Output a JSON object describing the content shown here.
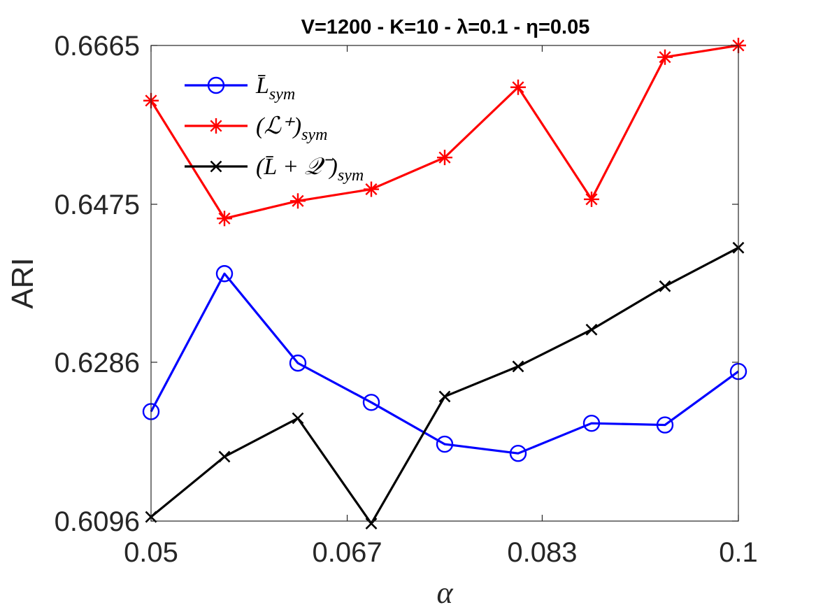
{
  "chart_data": {
    "type": "line",
    "title": "V=1200 - K=10 - λ=0.1 - η=0.05",
    "xlabel": "α",
    "ylabel": "ARI",
    "xlim": [
      0.05,
      0.1
    ],
    "ylim": [
      0.6096,
      0.6665
    ],
    "x": [
      0.05,
      0.05625,
      0.0625,
      0.06875,
      0.075,
      0.08125,
      0.0875,
      0.09375,
      0.1
    ],
    "xticks": [
      0.05,
      0.0667,
      0.0833,
      0.1
    ],
    "xtick_labels": [
      "0.05",
      "0.067",
      "0.083",
      "0.1"
    ],
    "yticks": [
      0.6096,
      0.6286,
      0.6475,
      0.6665
    ],
    "ytick_labels": [
      "0.6096",
      "0.6286",
      "0.6475",
      "0.6665"
    ],
    "legend_position": "top-left",
    "series": [
      {
        "name": "L̄sym",
        "legend_main": "L̄",
        "legend_sub": "sym",
        "color": "#0000ff",
        "marker": "circle",
        "values": [
          0.6227,
          0.6392,
          0.6285,
          0.6238,
          0.6188,
          0.6177,
          0.6213,
          0.6211,
          0.6275
        ]
      },
      {
        "name": "(ℒ+)sym",
        "legend_main": "(ℒ⁺)",
        "legend_sub": "sym",
        "color": "#ff0000",
        "marker": "star",
        "values": [
          0.6599,
          0.6458,
          0.6479,
          0.6493,
          0.6531,
          0.6615,
          0.6481,
          0.6651,
          0.6665
        ]
      },
      {
        "name": "(L̄+𝒬−)sym",
        "legend_main": "(L̄ + 𝒬⁻)",
        "legend_sub": "sym",
        "color": "#000000",
        "marker": "x",
        "values": [
          0.6101,
          0.6173,
          0.6219,
          0.6093,
          0.6245,
          0.6281,
          0.6325,
          0.6377,
          0.6423
        ]
      }
    ]
  }
}
